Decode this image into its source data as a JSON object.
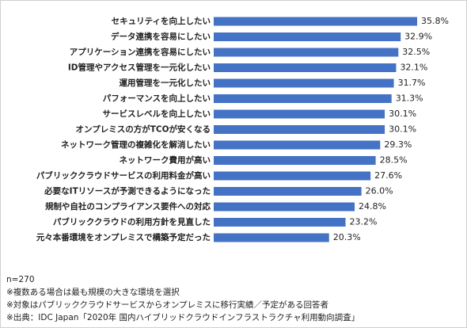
{
  "chart_data": {
    "type": "bar",
    "orientation": "horizontal",
    "color": "#4472c4",
    "categories": [
      "セキュリティを向上したい",
      "データ連携を容易にしたい",
      "アプリケーション連携を容易にしたい",
      "ID管理やアクセス管理を一元化したい",
      "運用管理を一元化したい",
      "パフォーマンスを向上したい",
      "サービスレベルを向上したい",
      "オンプレミスの方がTCOが安くなる",
      "ネットワーク管理の複雑化を解消したい",
      "ネットワーク費用が高い",
      "パブリッククラウドサービスの利用料金が高い",
      "必要なITリソースが予測できるようになった",
      "規制や自社のコンプライアンス要件への対応",
      "パブリッククラウドの利用方針を見直した",
      "元々本番環境をオンプレミスで構築予定だった"
    ],
    "values": [
      35.8,
      32.9,
      32.5,
      32.1,
      31.7,
      31.3,
      30.1,
      30.1,
      29.3,
      28.5,
      27.6,
      26.0,
      24.8,
      23.2,
      20.3
    ],
    "value_labels": [
      "35.8%",
      "32.9%",
      "32.5%",
      "32.1%",
      "31.7%",
      "31.3%",
      "30.1%",
      "30.1%",
      "29.3%",
      "28.5%",
      "27.6%",
      "26.0%",
      "24.8%",
      "23.2%",
      "20.3%"
    ],
    "notes": [
      "n=270",
      "※複数ある場合は最も規模の大きな環境を選択",
      "※対象はパブリッククラウドサービスからオンプレミスに移行実績／予定がある回答者",
      "※出典：IDC Japan「2020年 国内ハイブリッドクラウドインフラストラクチャ利用動向調査」"
    ]
  }
}
